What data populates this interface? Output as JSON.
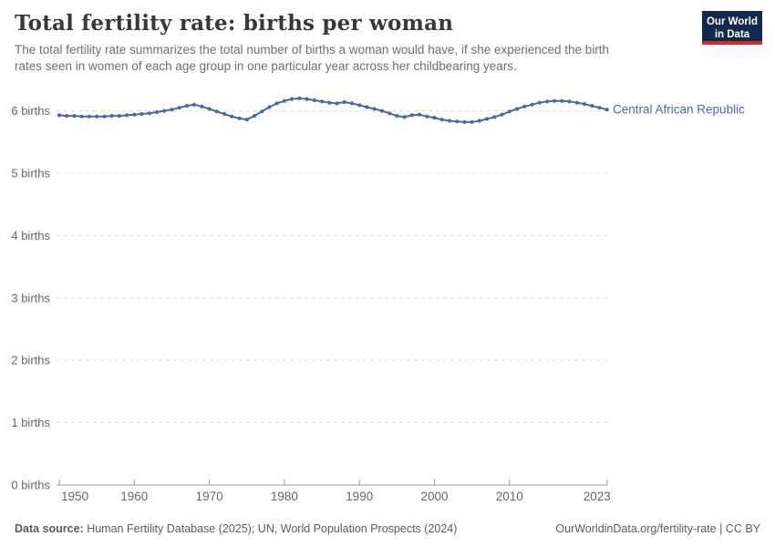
{
  "header": {
    "title": "Total fertility rate: births per woman",
    "subtitle_lines": [
      "The total fertility rate summarizes the total number of births a woman would have, if she experienced the birth",
      "rates seen in women of each age group in one particular year across her childbearing years."
    ]
  },
  "logo": {
    "line1": "Our World",
    "line2": "in Data",
    "bg_color": "#12284d",
    "bar_color": "#cf2d24"
  },
  "chart_data": {
    "type": "line",
    "title": "Total fertility rate: births per woman",
    "xlabel": "",
    "ylabel": "births per woman",
    "grid": true,
    "legend_position": "inline-right",
    "ylim": [
      0,
      6.5
    ],
    "xlim": [
      1950,
      2023
    ],
    "x_ticks": [
      1950,
      1960,
      1970,
      1980,
      1990,
      2000,
      2010,
      2023
    ],
    "y_ticks": [
      {
        "value": 0,
        "label": "0 births"
      },
      {
        "value": 1,
        "label": "1 births"
      },
      {
        "value": 2,
        "label": "2 births"
      },
      {
        "value": 3,
        "label": "3 births"
      },
      {
        "value": 4,
        "label": "4 births"
      },
      {
        "value": 5,
        "label": "5 births"
      },
      {
        "value": 6,
        "label": "6 births"
      }
    ],
    "x": [
      1950,
      1951,
      1952,
      1953,
      1954,
      1955,
      1956,
      1957,
      1958,
      1959,
      1960,
      1961,
      1962,
      1963,
      1964,
      1965,
      1966,
      1967,
      1968,
      1969,
      1970,
      1971,
      1972,
      1973,
      1974,
      1975,
      1976,
      1977,
      1978,
      1979,
      1980,
      1981,
      1982,
      1983,
      1984,
      1985,
      1986,
      1987,
      1988,
      1989,
      1990,
      1991,
      1992,
      1993,
      1994,
      1995,
      1996,
      1997,
      1998,
      1999,
      2000,
      2001,
      2002,
      2003,
      2004,
      2005,
      2006,
      2007,
      2008,
      2009,
      2010,
      2011,
      2012,
      2013,
      2014,
      2015,
      2016,
      2017,
      2018,
      2019,
      2020,
      2021,
      2022,
      2023
    ],
    "series": [
      {
        "name": "Central African Republic",
        "color": "#4c6a9c",
        "values": [
          5.93,
          5.92,
          5.92,
          5.91,
          5.91,
          5.91,
          5.91,
          5.92,
          5.92,
          5.93,
          5.94,
          5.95,
          5.96,
          5.98,
          6.0,
          6.02,
          6.05,
          6.08,
          6.1,
          6.07,
          6.03,
          5.99,
          5.95,
          5.91,
          5.88,
          5.86,
          5.92,
          5.99,
          6.06,
          6.12,
          6.16,
          6.19,
          6.2,
          6.19,
          6.17,
          6.15,
          6.13,
          6.12,
          6.14,
          6.12,
          6.09,
          6.06,
          6.03,
          6.0,
          5.96,
          5.92,
          5.9,
          5.93,
          5.94,
          5.91,
          5.89,
          5.86,
          5.84,
          5.83,
          5.82,
          5.82,
          5.84,
          5.87,
          5.9,
          5.94,
          5.99,
          6.03,
          6.07,
          6.1,
          6.13,
          6.15,
          6.16,
          6.16,
          6.15,
          6.13,
          6.11,
          6.08,
          6.05,
          6.02
        ]
      }
    ],
    "colors": {
      "gridline": "#dcdcdc",
      "axis": "#999999",
      "tick_label": "#666666"
    }
  },
  "footer": {
    "source_bold": "Data source:",
    "source_text": " Human Fertility Database (2025); UN, World Population Prospects (2024)",
    "credit": "OurWorldinData.org/fertility-rate | CC BY"
  }
}
